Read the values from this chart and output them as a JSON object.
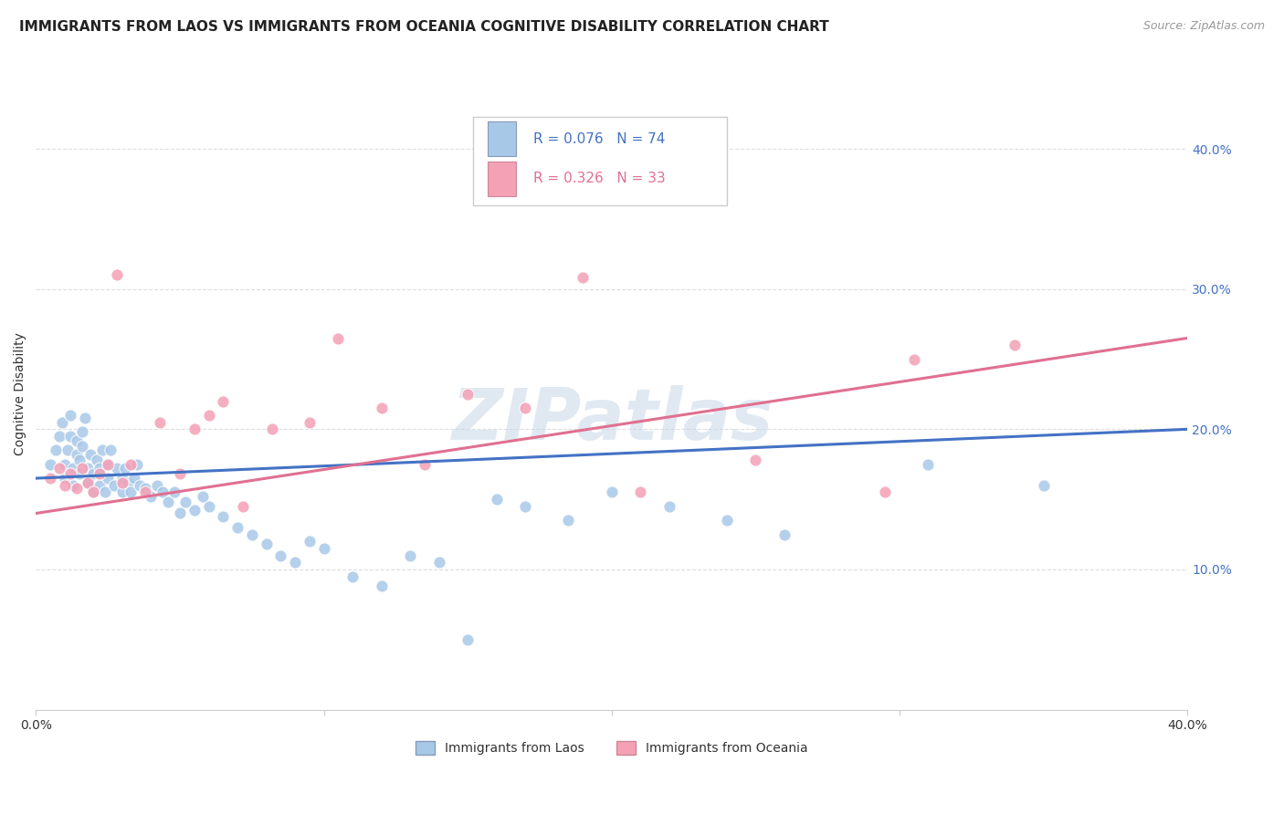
{
  "title": "IMMIGRANTS FROM LAOS VS IMMIGRANTS FROM OCEANIA COGNITIVE DISABILITY CORRELATION CHART",
  "source": "Source: ZipAtlas.com",
  "ylabel": "Cognitive Disability",
  "xlim": [
    0.0,
    0.4
  ],
  "ylim": [
    0.0,
    0.45
  ],
  "yticks": [
    0.1,
    0.2,
    0.3,
    0.4
  ],
  "ytick_labels": [
    "10.0%",
    "20.0%",
    "30.0%",
    "40.0%"
  ],
  "xticks": [
    0.0,
    0.1,
    0.2,
    0.3,
    0.4
  ],
  "watermark": "ZIPatlas",
  "color_laos": "#a8c8e8",
  "color_oceania": "#f4a0b5",
  "line_color_laos": "#4472c4",
  "line_color_oceania": "#e07090",
  "laos_x": [
    0.005,
    0.007,
    0.008,
    0.009,
    0.01,
    0.01,
    0.011,
    0.012,
    0.012,
    0.013,
    0.013,
    0.014,
    0.014,
    0.015,
    0.015,
    0.016,
    0.016,
    0.017,
    0.018,
    0.018,
    0.019,
    0.02,
    0.02,
    0.021,
    0.022,
    0.022,
    0.023,
    0.024,
    0.025,
    0.025,
    0.026,
    0.027,
    0.028,
    0.03,
    0.03,
    0.031,
    0.032,
    0.033,
    0.034,
    0.035,
    0.036,
    0.038,
    0.04,
    0.042,
    0.044,
    0.046,
    0.048,
    0.05,
    0.052,
    0.055,
    0.058,
    0.06,
    0.065,
    0.07,
    0.075,
    0.08,
    0.085,
    0.09,
    0.095,
    0.1,
    0.11,
    0.12,
    0.13,
    0.14,
    0.15,
    0.16,
    0.17,
    0.185,
    0.2,
    0.22,
    0.24,
    0.26,
    0.31,
    0.35
  ],
  "laos_y": [
    0.175,
    0.185,
    0.195,
    0.205,
    0.165,
    0.175,
    0.185,
    0.195,
    0.21,
    0.16,
    0.172,
    0.182,
    0.192,
    0.168,
    0.178,
    0.188,
    0.198,
    0.208,
    0.162,
    0.172,
    0.182,
    0.155,
    0.168,
    0.178,
    0.16,
    0.172,
    0.185,
    0.155,
    0.165,
    0.175,
    0.185,
    0.16,
    0.172,
    0.155,
    0.165,
    0.172,
    0.162,
    0.155,
    0.165,
    0.175,
    0.16,
    0.158,
    0.152,
    0.16,
    0.155,
    0.148,
    0.155,
    0.14,
    0.148,
    0.142,
    0.152,
    0.145,
    0.138,
    0.13,
    0.125,
    0.118,
    0.11,
    0.105,
    0.12,
    0.115,
    0.095,
    0.088,
    0.11,
    0.105,
    0.05,
    0.15,
    0.145,
    0.135,
    0.155,
    0.145,
    0.135,
    0.125,
    0.175,
    0.16
  ],
  "oceania_x": [
    0.005,
    0.008,
    0.01,
    0.012,
    0.014,
    0.016,
    0.018,
    0.02,
    0.022,
    0.025,
    0.028,
    0.03,
    0.033,
    0.038,
    0.043,
    0.05,
    0.055,
    0.06,
    0.065,
    0.072,
    0.082,
    0.095,
    0.105,
    0.12,
    0.135,
    0.15,
    0.17,
    0.19,
    0.21,
    0.25,
    0.295,
    0.305,
    0.34
  ],
  "oceania_y": [
    0.165,
    0.172,
    0.16,
    0.168,
    0.158,
    0.172,
    0.162,
    0.155,
    0.168,
    0.175,
    0.31,
    0.162,
    0.175,
    0.155,
    0.205,
    0.168,
    0.2,
    0.21,
    0.22,
    0.145,
    0.2,
    0.205,
    0.265,
    0.215,
    0.175,
    0.225,
    0.215,
    0.308,
    0.155,
    0.178,
    0.155,
    0.25,
    0.26
  ],
  "background_color": "#ffffff",
  "grid_color": "#dddddd",
  "title_fontsize": 11,
  "axis_label_fontsize": 10,
  "tick_fontsize": 10,
  "legend_label1": "Immigrants from Laos",
  "legend_label2": "Immigrants from Oceania",
  "legend_R1": "0.076",
  "legend_N1": "74",
  "legend_R2": "0.326",
  "legend_N2": "33"
}
